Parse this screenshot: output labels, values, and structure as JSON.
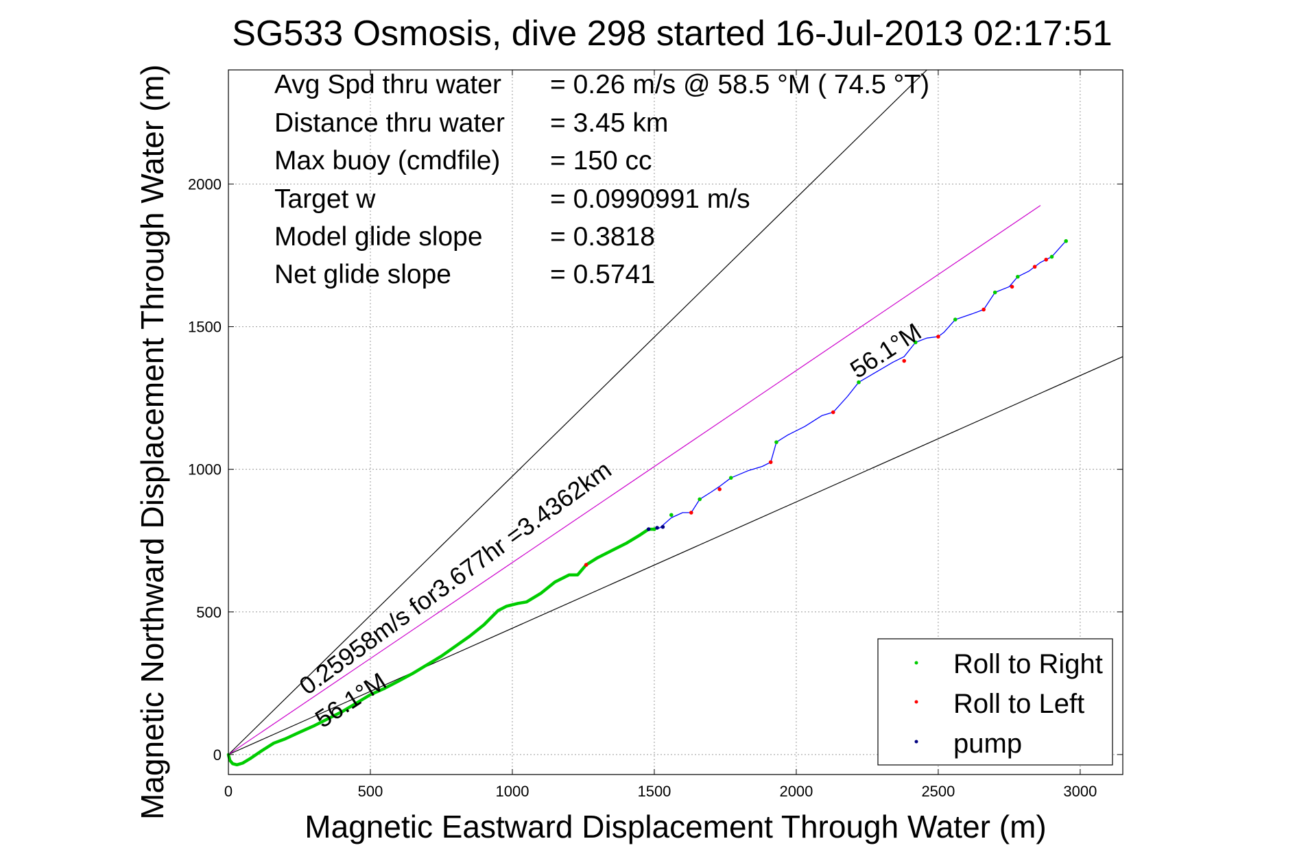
{
  "chart_data": {
    "type": "line",
    "title": "SG533 Osmosis, dive 298 started 16-Jul-2013 02:17:51",
    "xlabel": "Magnetic Eastward Displacement Through Water (m)",
    "ylabel": "Magnetic Northward Displacement Through Water (m)",
    "xlim": [
      0,
      3150
    ],
    "ylim": [
      -70,
      2400
    ],
    "xticks": [
      "0",
      "500",
      "1000",
      "1500",
      "2000",
      "2500",
      "3000"
    ],
    "yticks": [
      "0",
      "500",
      "1000",
      "1500",
      "2000"
    ],
    "grid": true,
    "legend_position": "bottom-right",
    "stats": [
      {
        "label": "Avg Spd thru water",
        "value": "=  0.26 m/s @  58.5 °M ( 74.5 °T)"
      },
      {
        "label": "Distance thru water",
        "value": "=  3.45 km"
      },
      {
        "label": "Max buoy (cmdfile)",
        "value": "= 150 cc"
      },
      {
        "label": "Target w",
        "value": "= 0.0990991 m/s"
      },
      {
        "label": "Model glide slope",
        "value": "= 0.3818"
      },
      {
        "label": "Net glide slope",
        "value": "= 0.5741"
      }
    ],
    "annotations": {
      "speed_note": "0.25958m/s for3.677hr =3.4362km",
      "heading_start": "56.1°M",
      "heading_end": "56.1°M"
    },
    "guide_lines": [
      {
        "from": [
          0,
          0
        ],
        "to": [
          2460,
          2400
        ],
        "color": "#000000"
      },
      {
        "from": [
          0,
          0
        ],
        "to": [
          3150,
          1395
        ],
        "color": "#000000"
      },
      {
        "from": [
          0,
          0
        ],
        "to": [
          2860,
          1925
        ],
        "color": "#cc00cc"
      }
    ],
    "track": {
      "color_early": "#00cc00",
      "color_late": "#0000ff",
      "points": [
        [
          0,
          0
        ],
        [
          5,
          -20
        ],
        [
          15,
          -32
        ],
        [
          30,
          -36
        ],
        [
          50,
          -30
        ],
        [
          80,
          -12
        ],
        [
          120,
          15
        ],
        [
          160,
          40
        ],
        [
          200,
          55
        ],
        [
          250,
          78
        ],
        [
          300,
          100
        ],
        [
          350,
          125
        ],
        [
          400,
          150
        ],
        [
          450,
          180
        ],
        [
          500,
          210
        ],
        [
          550,
          232
        ],
        [
          600,
          258
        ],
        [
          650,
          285
        ],
        [
          700,
          315
        ],
        [
          750,
          345
        ],
        [
          800,
          380
        ],
        [
          850,
          415
        ],
        [
          900,
          455
        ],
        [
          950,
          505
        ],
        [
          980,
          520
        ],
        [
          1020,
          530
        ],
        [
          1050,
          535
        ],
        [
          1100,
          565
        ],
        [
          1150,
          605
        ],
        [
          1200,
          630
        ],
        [
          1230,
          630
        ],
        [
          1260,
          665
        ],
        [
          1300,
          690
        ],
        [
          1350,
          715
        ],
        [
          1400,
          740
        ],
        [
          1450,
          770
        ],
        [
          1480,
          790
        ],
        [
          1500,
          790
        ],
        [
          1520,
          795
        ],
        [
          1560,
          830
        ],
        [
          1600,
          848
        ],
        [
          1630,
          848
        ],
        [
          1660,
          895
        ],
        [
          1700,
          920
        ],
        [
          1730,
          940
        ],
        [
          1770,
          970
        ],
        [
          1830,
          995
        ],
        [
          1880,
          1010
        ],
        [
          1910,
          1025
        ],
        [
          1930,
          1095
        ],
        [
          1970,
          1120
        ],
        [
          2030,
          1150
        ],
        [
          2090,
          1188
        ],
        [
          2130,
          1200
        ],
        [
          2180,
          1255
        ],
        [
          2220,
          1305
        ],
        [
          2280,
          1340
        ],
        [
          2340,
          1375
        ],
        [
          2380,
          1395
        ],
        [
          2420,
          1445
        ],
        [
          2460,
          1460
        ],
        [
          2500,
          1465
        ],
        [
          2520,
          1480
        ],
        [
          2560,
          1525
        ],
        [
          2620,
          1545
        ],
        [
          2660,
          1560
        ],
        [
          2700,
          1620
        ],
        [
          2750,
          1640
        ],
        [
          2780,
          1675
        ],
        [
          2820,
          1695
        ],
        [
          2860,
          1725
        ],
        [
          2900,
          1745
        ],
        [
          2940,
          1790
        ],
        [
          2950,
          1800
        ]
      ],
      "roll_right": [
        [
          1500,
          790
        ],
        [
          1560,
          840
        ],
        [
          1660,
          895
        ],
        [
          1770,
          970
        ],
        [
          1930,
          1095
        ],
        [
          2220,
          1305
        ],
        [
          2420,
          1445
        ],
        [
          2560,
          1525
        ],
        [
          2700,
          1620
        ],
        [
          2780,
          1675
        ],
        [
          2900,
          1745
        ],
        [
          2950,
          1800
        ]
      ],
      "roll_left": [
        [
          1260,
          665
        ],
        [
          1630,
          848
        ],
        [
          1730,
          930
        ],
        [
          1910,
          1025
        ],
        [
          2130,
          1200
        ],
        [
          2380,
          1380
        ],
        [
          2500,
          1465
        ],
        [
          2660,
          1560
        ],
        [
          2760,
          1640
        ],
        [
          2840,
          1710
        ],
        [
          2880,
          1735
        ]
      ],
      "pump": [
        [
          1480,
          790
        ],
        [
          1510,
          795
        ],
        [
          1530,
          798
        ]
      ]
    },
    "legend": [
      {
        "label": "Roll to Right",
        "color": "#00cc00"
      },
      {
        "label": "Roll to Left",
        "color": "#ff0000"
      },
      {
        "label": "pump",
        "color": "#000080"
      }
    ]
  }
}
